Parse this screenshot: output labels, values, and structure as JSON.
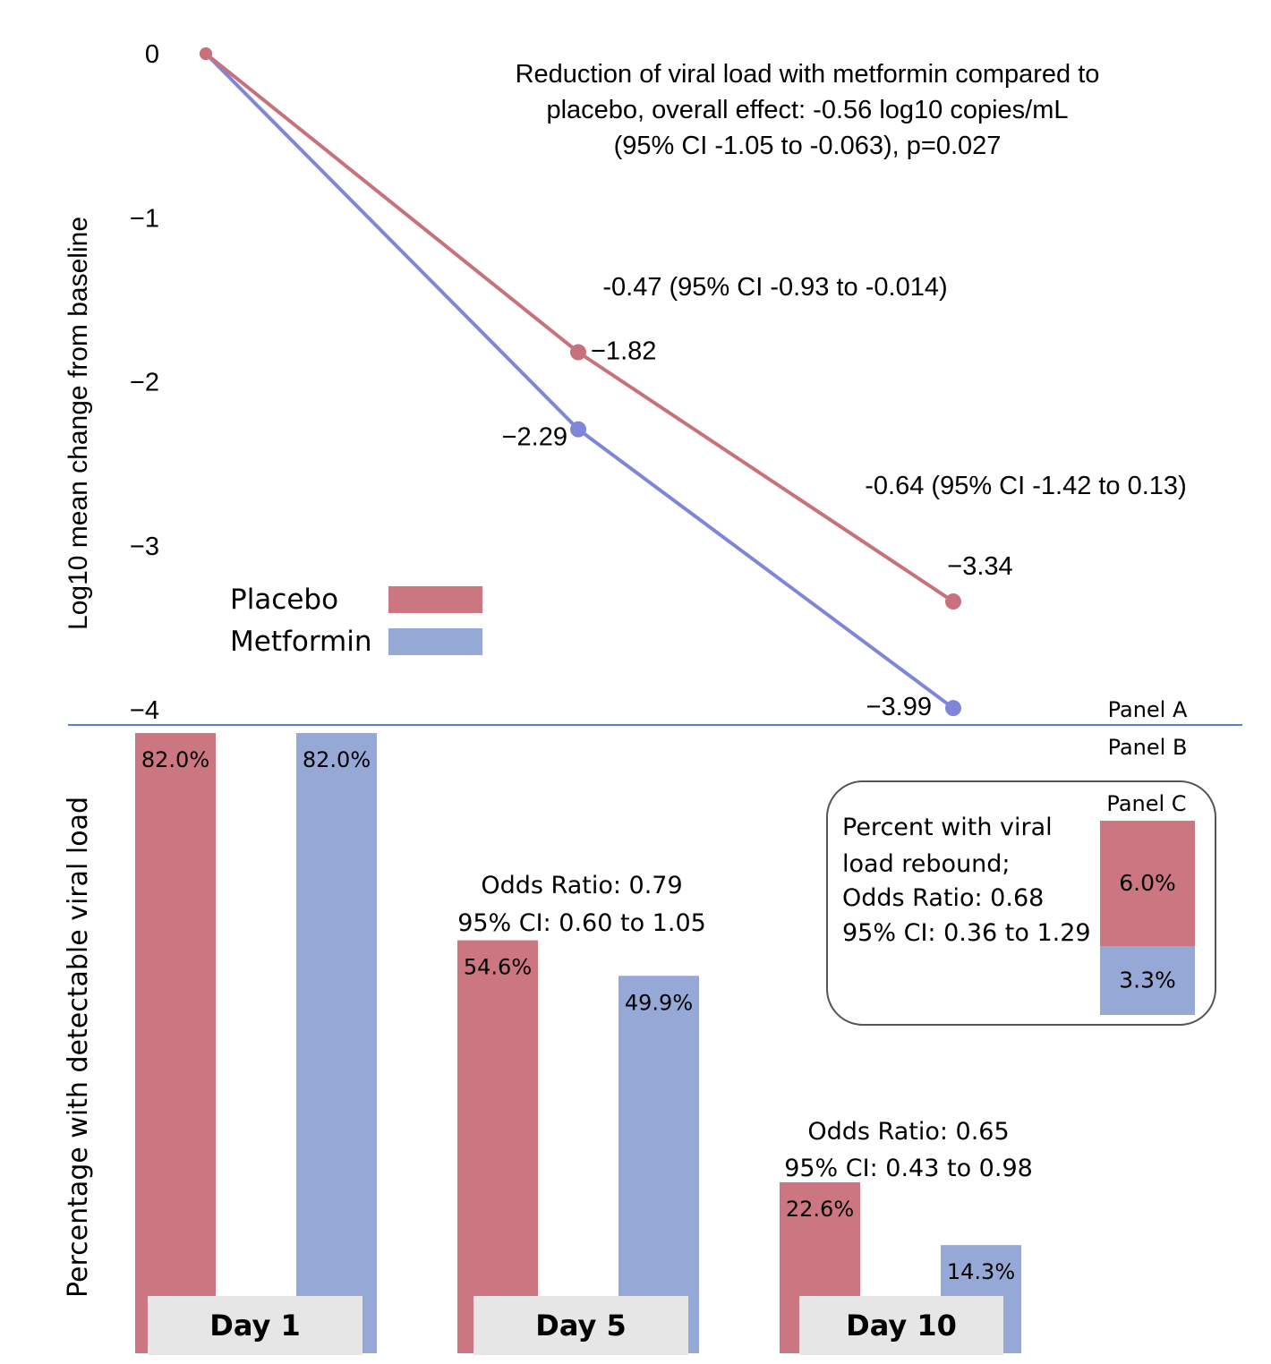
{
  "chart_data": [
    {
      "panel": "Panel A",
      "type": "line",
      "ylabel": "Log10 mean change from baseline",
      "xlabel": "",
      "ylim": [
        -4,
        0
      ],
      "yticks": [
        "0",
        "−1",
        "−2",
        "−3",
        "−4"
      ],
      "ytick_values": [
        0,
        -1,
        -2,
        -3,
        -4
      ],
      "x": [
        "Day 1",
        "Day 5",
        "Day 10"
      ],
      "series": [
        {
          "name": "Placebo",
          "color": "#c8717d",
          "values": [
            0,
            -1.82,
            -3.34
          ],
          "point_labels": [
            "",
            "−1.82",
            "−3.34"
          ]
        },
        {
          "name": "Metformin",
          "color": "#7f86d9",
          "values": [
            0,
            -2.29,
            -3.99
          ],
          "point_labels": [
            "",
            "−2.29",
            "−3.99"
          ]
        }
      ],
      "legend": {
        "placement": "bottom-left",
        "items": [
          "Placebo",
          "Metformin"
        ],
        "colors": [
          "#cb7681",
          "#95a8d6"
        ]
      },
      "annotations": {
        "overall": [
          "Reduction of viral load with metformin compared to",
          "placebo, overall effect: -0.56 log10 copies/mL",
          "(95% CI -1.05 to -0.063), p=0.027"
        ],
        "day5": "-0.47 (95% CI -0.93 to -0.014)",
        "day10": "-0.64 (95% CI -1.42 to 0.13)"
      },
      "grid": false
    },
    {
      "panel": "Panel B",
      "type": "bar",
      "ylabel": "Percentage with detectable viral load",
      "ylim": [
        0,
        82
      ],
      "categories": [
        "Day 1",
        "Day 5",
        "Day 10"
      ],
      "series": [
        {
          "name": "Placebo",
          "color": "#cb7681",
          "values": [
            82.0,
            54.6,
            22.6
          ],
          "labels": [
            "82.0%",
            "54.6%",
            "22.6%"
          ]
        },
        {
          "name": "Metformin",
          "color": "#95a8d6",
          "values": [
            82.0,
            49.9,
            14.3
          ],
          "labels": [
            "82.0%",
            "49.9%",
            "14.3%"
          ]
        }
      ],
      "annotations": [
        {
          "category": "Day 5",
          "lines": [
            "Odds Ratio: 0.79",
            "95% CI: 0.60 to 1.05"
          ]
        },
        {
          "category": "Day 10",
          "lines": [
            "Odds Ratio: 0.65",
            "95% CI: 0.43 to 0.98"
          ]
        }
      ]
    },
    {
      "panel": "Panel C",
      "type": "bar",
      "stacked": true,
      "title_lines": [
        "Percent with viral",
        "load rebound;",
        "Odds Ratio: 0.68",
        "95% CI: 0.36 to 1.29"
      ],
      "segments": [
        {
          "name": "Placebo",
          "color": "#cb7681",
          "value": 6.0,
          "label": "6.0%"
        },
        {
          "name": "Metformin",
          "color": "#95a8d6",
          "value": 3.3,
          "label": "3.3%"
        }
      ]
    }
  ],
  "panel_labels": {
    "a": "Panel A",
    "b": "Panel B",
    "c": "Panel C"
  },
  "divider_color": "#5b7fc7"
}
